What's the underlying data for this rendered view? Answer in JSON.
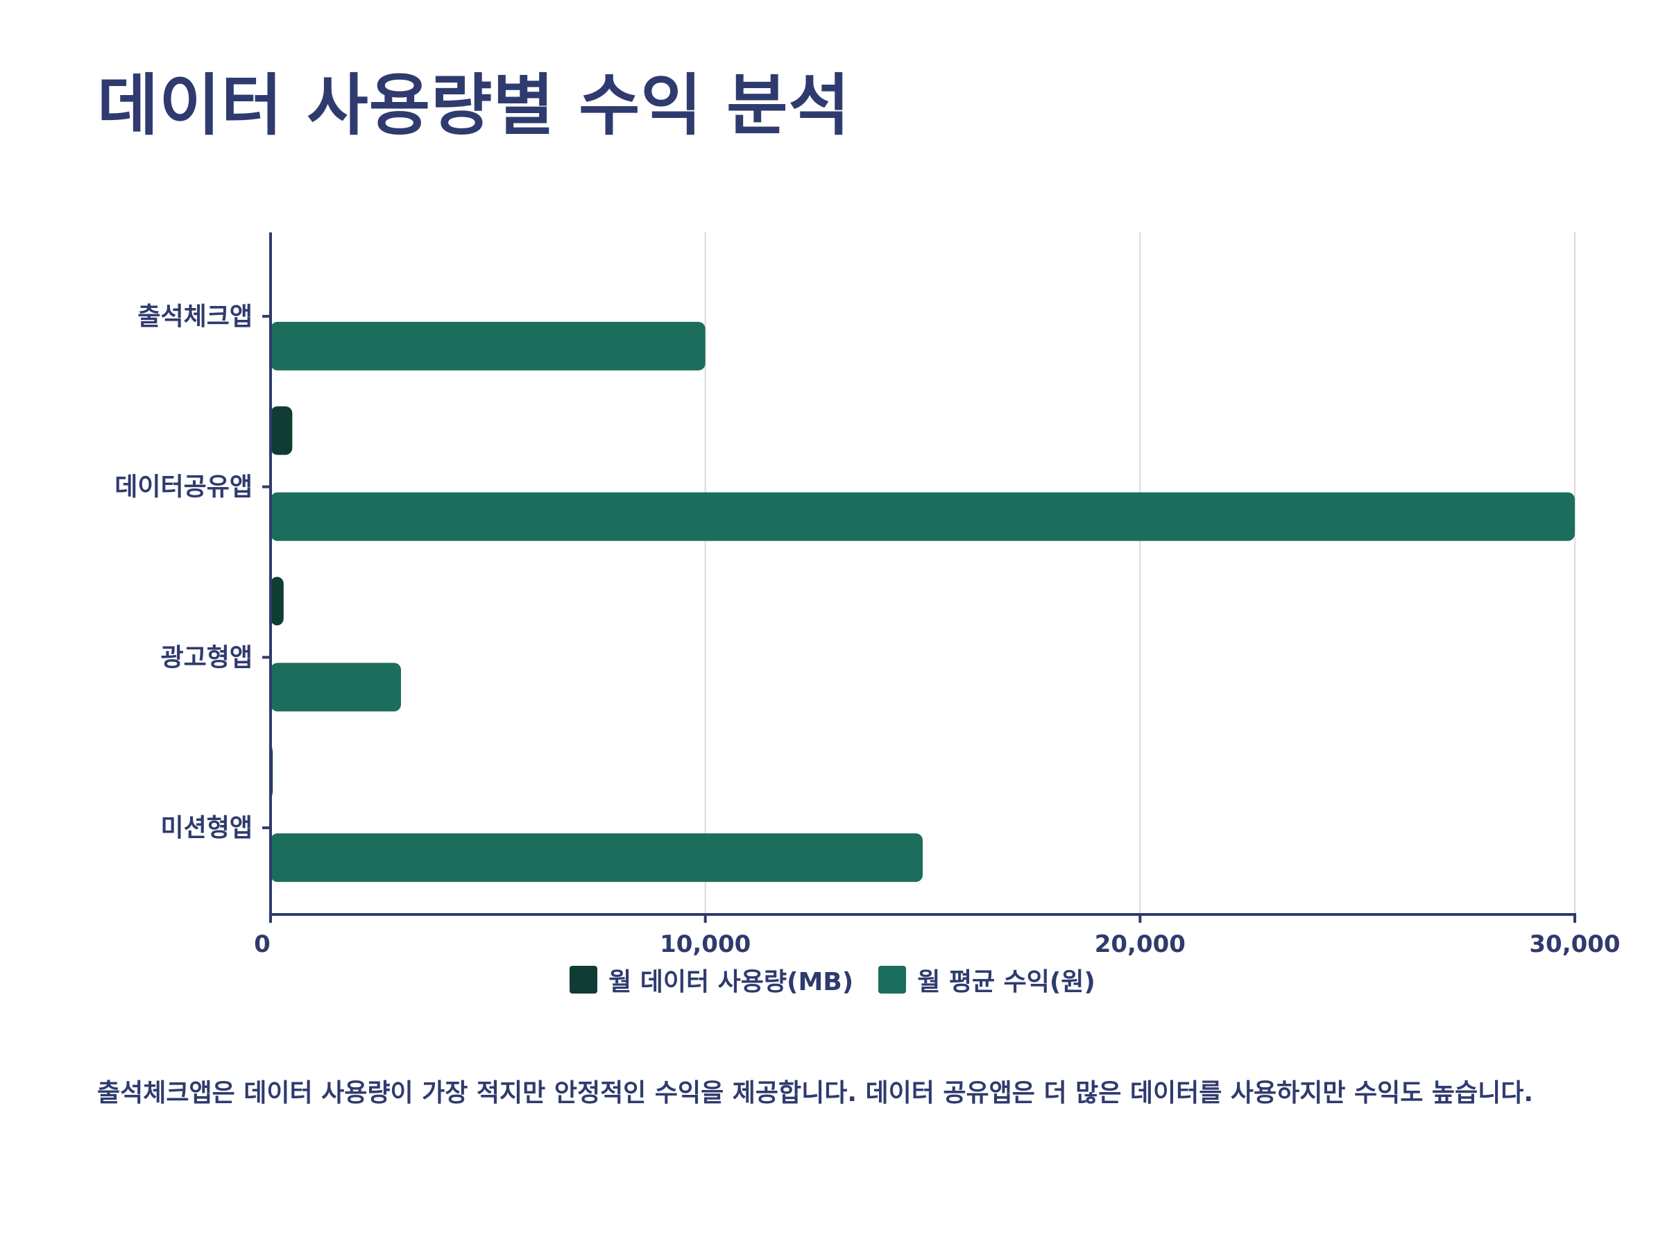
{
  "title": "데이터 사용량별 수익 분석",
  "colors": {
    "text": "#2f3b6e",
    "grid": "#d9d9d9",
    "axis": "#2f3b6e"
  },
  "chart_data": {
    "type": "bar",
    "orientation": "horizontal",
    "categories": [
      "출석체크앱",
      "데이터공유앱",
      "광고형앱",
      "미션형앱"
    ],
    "series": [
      {
        "name": "월 데이터 사용량(MB)",
        "color": "#0f3d33",
        "values": [
          0,
          500,
          300,
          50
        ]
      },
      {
        "name": "월 평균 수익(원)",
        "color": "#1b6e5c",
        "values": [
          10000,
          30000,
          3000,
          15000
        ]
      }
    ],
    "xlim": [
      0,
      30000
    ],
    "xticks": [
      0,
      10000,
      20000,
      30000
    ],
    "xtick_labels": [
      "0",
      "10,000",
      "20,000",
      "30,000"
    ],
    "grid": true,
    "legend": "bottom-center"
  },
  "caption": "출석체크앱은 데이터 사용량이 가장 적지만 안정적인 수익을 제공합니다. 데이터 공유앱은 더 많은 데이터를 사용하지만 수익도 높습니다."
}
